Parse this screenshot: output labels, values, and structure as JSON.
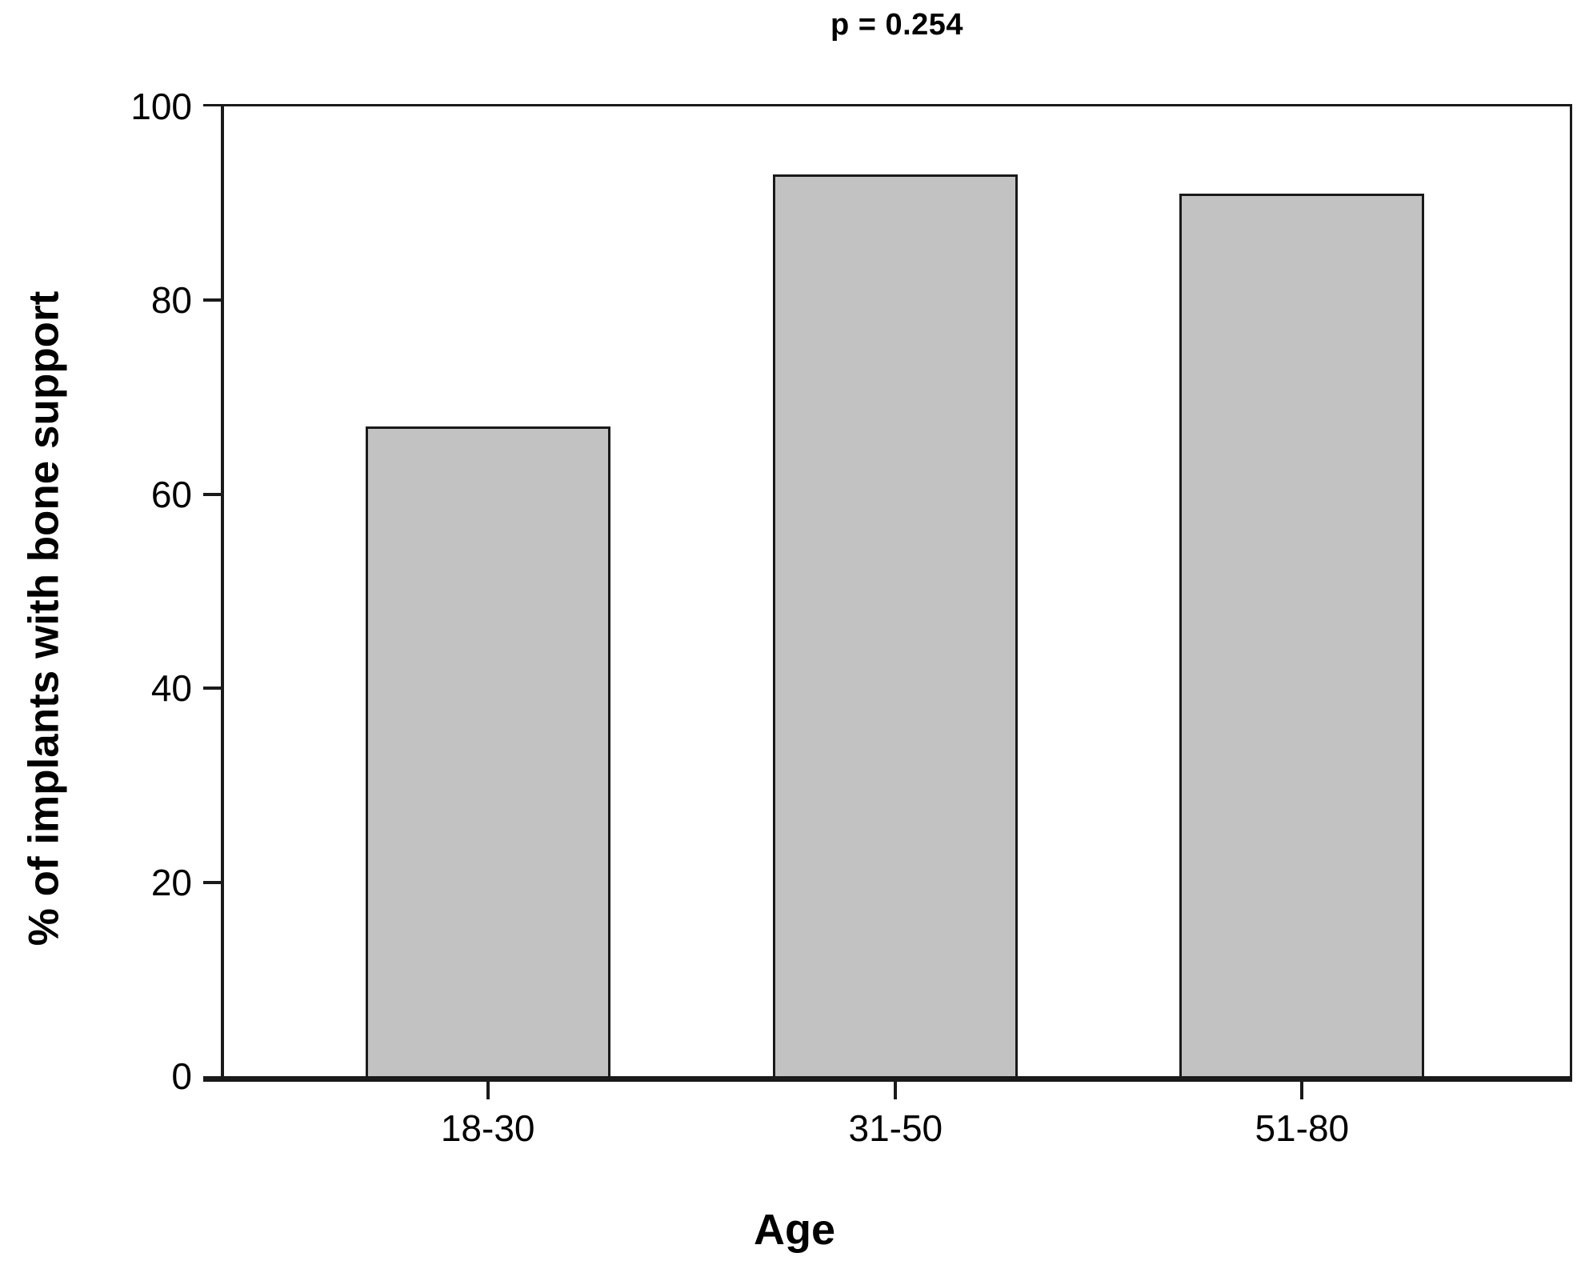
{
  "chart_data": {
    "type": "bar",
    "title": "p = 0.254",
    "xlabel": "Age",
    "ylabel": "% of implants with bone support",
    "categories": [
      "18-30",
      "31-50",
      "51-80"
    ],
    "values": [
      67,
      93,
      91
    ],
    "ylim": [
      0,
      100
    ],
    "yticks": [
      0,
      20,
      40,
      60,
      80,
      100
    ],
    "grid": false,
    "legend": "none",
    "colors": {
      "bar_fill": "#c2c2c2",
      "bar_border": "#1a1a1a",
      "axis": "#1a1a1a",
      "text": "#000000",
      "background": "#ffffff"
    }
  }
}
